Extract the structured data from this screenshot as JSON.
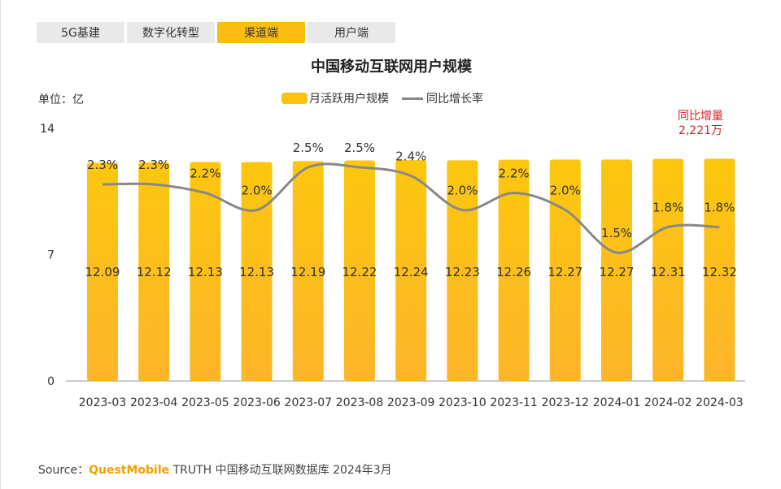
{
  "tabs": [
    {
      "label": "5G基建",
      "active": false
    },
    {
      "label": "数字化转型",
      "active": false
    },
    {
      "label": "渠道端",
      "active": true
    },
    {
      "label": "用户端",
      "active": false
    }
  ],
  "unit": "单位：亿",
  "note": {
    "line1": "同比增量",
    "line2": "2,221万",
    "color": "#d81e2a"
  },
  "source": {
    "prefix": "Source：",
    "brand": "QuestMobile",
    "rest": " TRUTH 中国移动互联网数据库 2024年3月"
  },
  "chart_data": {
    "type": "bar+line",
    "title": "中国移动互联网用户规模",
    "categories": [
      "2023-03",
      "2023-04",
      "2023-05",
      "2023-06",
      "2023-07",
      "2023-08",
      "2023-09",
      "2023-10",
      "2023-11",
      "2023-12",
      "2024-01",
      "2024-02",
      "2024-03"
    ],
    "series": [
      {
        "name": "月活跃用户规模",
        "type": "bar",
        "color": "#fbc210",
        "values": [
          12.09,
          12.12,
          12.13,
          12.13,
          12.19,
          12.22,
          12.24,
          12.23,
          12.26,
          12.27,
          12.27,
          12.31,
          12.32
        ],
        "labels": [
          "12.09",
          "12.12",
          "12.13",
          "12.13",
          "12.19",
          "12.22",
          "12.24",
          "12.23",
          "12.26",
          "12.27",
          "12.27",
          "12.31",
          "12.32"
        ]
      },
      {
        "name": "同比增长率",
        "type": "line",
        "color": "#888888",
        "values": [
          2.3,
          2.3,
          2.2,
          2.0,
          2.5,
          2.5,
          2.4,
          2.0,
          2.2,
          2.0,
          1.5,
          1.8,
          1.8
        ],
        "labels": [
          "2.3%",
          "2.3%",
          "2.2%",
          "2.0%",
          "2.5%",
          "2.5%",
          "2.4%",
          "2.0%",
          "2.2%",
          "2.0%",
          "1.5%",
          "1.8%",
          "1.8%"
        ]
      }
    ],
    "yticks": [
      "0",
      "7",
      "14"
    ],
    "ylim": [
      0,
      14
    ],
    "legend": "top-center",
    "grid": false
  }
}
